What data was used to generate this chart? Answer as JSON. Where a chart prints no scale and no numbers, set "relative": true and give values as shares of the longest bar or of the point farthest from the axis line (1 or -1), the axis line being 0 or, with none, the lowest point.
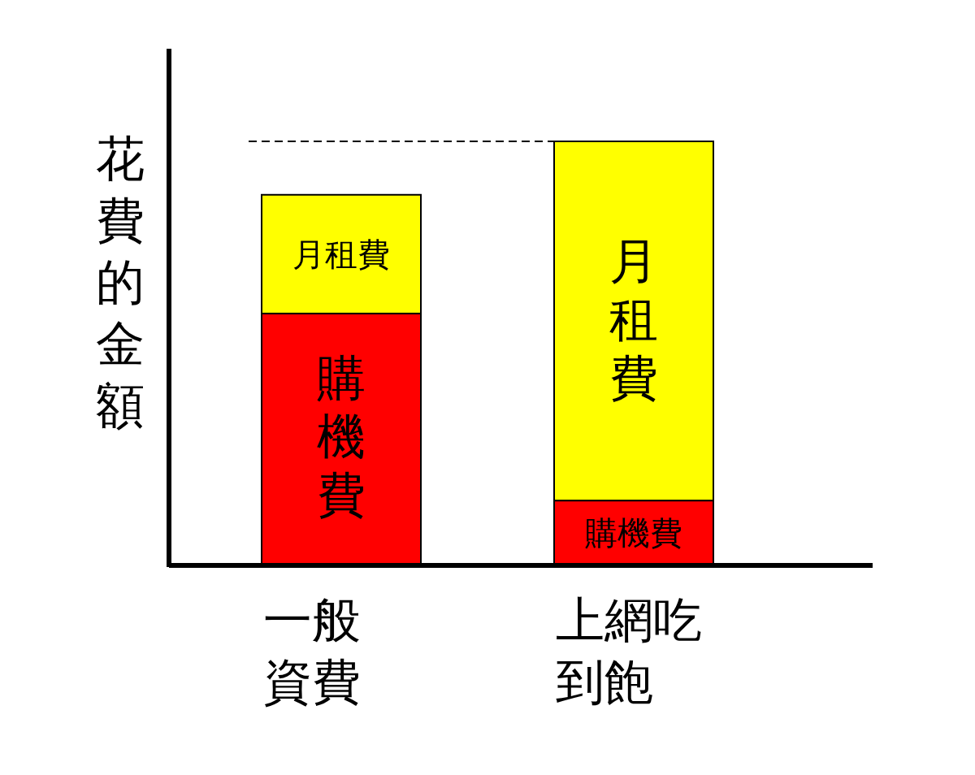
{
  "chart_data": {
    "type": "bar",
    "stacked": true,
    "relative": true,
    "ylabel": "花費的金額",
    "categories": [
      "一般資費",
      "上網吃到飽"
    ],
    "series": [
      {
        "name": "購機費",
        "color": "#ff0000",
        "values": [
          0.594,
          0.153
        ]
      },
      {
        "name": "月租費",
        "color": "#ffff00",
        "values": [
          0.28,
          0.847
        ]
      }
    ],
    "ref_lines": [
      {
        "axis": "y",
        "value": 1,
        "color": "#000000",
        "line_style": "dashed"
      }
    ],
    "legend": false
  }
}
